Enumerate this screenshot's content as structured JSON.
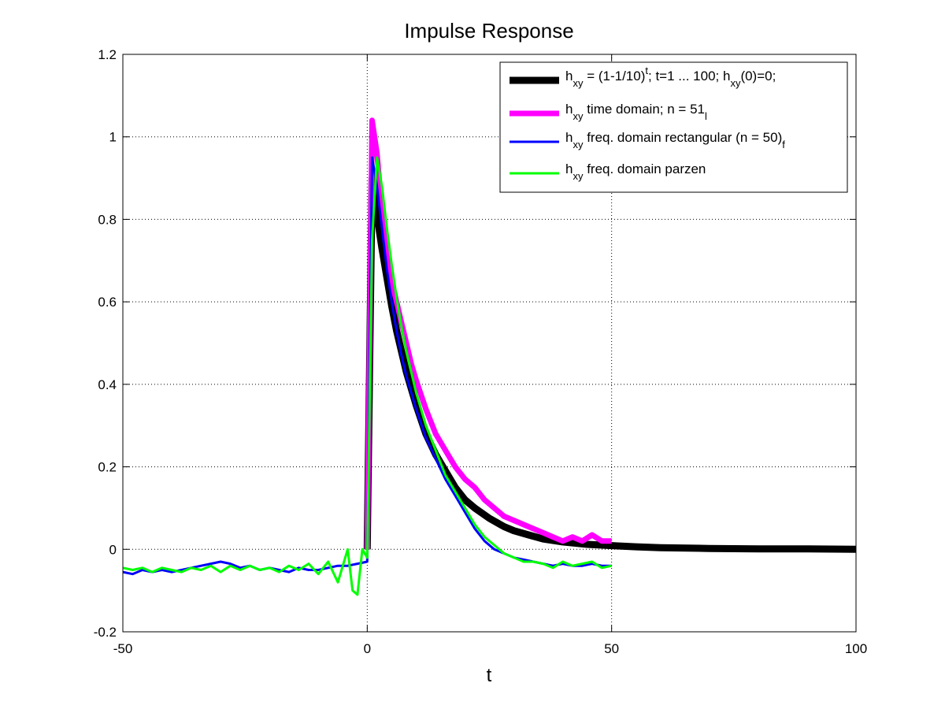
{
  "chart_data": {
    "type": "line",
    "title": "Impulse Response",
    "xlabel": "t",
    "ylabel": "",
    "xlim": [
      -50,
      100
    ],
    "ylim": [
      -0.2,
      1.2
    ],
    "xticks": [
      -50,
      0,
      50,
      100
    ],
    "xtick_labels": [
      "-50",
      "0",
      "50",
      "100"
    ],
    "yticks": [
      -0.2,
      0,
      0.2,
      0.4,
      0.6,
      0.8,
      1,
      1.2
    ],
    "ytick_labels": [
      "-0.2",
      "0",
      "0.2",
      "0.4",
      "0.6",
      "0.8",
      "1",
      "1.2"
    ],
    "grid": true,
    "legend_position": "top-right",
    "colors": {
      "true_response": "#000000",
      "time_domain": "#ff00ff",
      "freq_rect": "#0000ff",
      "freq_parzen": "#00ff00"
    },
    "series": [
      {
        "id": "true_response",
        "legend": {
          "base": "h",
          "sub": "xy",
          "rest": " = (1-1/10)",
          "sup": "t",
          "rest2": "; t=1 ... 100; h",
          "sub2": "xy",
          "rest3": "(0)=0;"
        },
        "x": [
          0,
          1,
          2,
          3,
          4,
          5,
          6,
          7,
          8,
          9,
          10,
          12,
          14,
          16,
          18,
          20,
          22,
          25,
          28,
          30,
          33,
          36,
          40,
          45,
          50,
          55,
          60,
          70,
          80,
          90,
          100
        ],
        "y": [
          0,
          0.9,
          0.81,
          0.73,
          0.66,
          0.59,
          0.53,
          0.48,
          0.43,
          0.39,
          0.35,
          0.28,
          0.23,
          0.19,
          0.15,
          0.12,
          0.1,
          0.075,
          0.055,
          0.045,
          0.035,
          0.025,
          0.018,
          0.012,
          0.009,
          0.006,
          0.004,
          0.002,
          0.001,
          0.001,
          0.0
        ]
      },
      {
        "id": "time_domain",
        "legend": {
          "base": "h",
          "sub": "xy",
          "rest": " time domain; n",
          "sub2": "l",
          "rest2": " = 51"
        },
        "x": [
          0,
          1,
          2,
          3,
          4,
          5,
          6,
          7,
          8,
          9,
          10,
          12,
          14,
          16,
          18,
          20,
          22,
          24,
          26,
          28,
          30,
          32,
          34,
          36,
          38,
          40,
          42,
          44,
          46,
          48,
          50
        ],
        "y": [
          0,
          1.04,
          0.96,
          0.82,
          0.72,
          0.65,
          0.6,
          0.55,
          0.5,
          0.45,
          0.41,
          0.34,
          0.28,
          0.24,
          0.2,
          0.17,
          0.15,
          0.12,
          0.1,
          0.08,
          0.07,
          0.06,
          0.05,
          0.04,
          0.03,
          0.02,
          0.03,
          0.02,
          0.035,
          0.02,
          0.02
        ]
      },
      {
        "id": "freq_rect",
        "legend": {
          "base": "h",
          "sub": "xy",
          "rest": " freq. domain rectangular (n",
          "sub2": "f",
          "rest2": " = 50)"
        },
        "x": [
          -50,
          -48,
          -46,
          -44,
          -42,
          -40,
          -38,
          -36,
          -34,
          -32,
          -30,
          -28,
          -26,
          -24,
          -22,
          -20,
          -18,
          -16,
          -14,
          -12,
          -10,
          -8,
          -6,
          -4,
          -2,
          0,
          1,
          2,
          3,
          4,
          5,
          6,
          7,
          8,
          9,
          10,
          12,
          14,
          16,
          18,
          20,
          22,
          24,
          26,
          28,
          30,
          32,
          34,
          36,
          38,
          40,
          42,
          44,
          46,
          48,
          50
        ],
        "y": [
          -0.055,
          -0.06,
          -0.05,
          -0.055,
          -0.05,
          -0.055,
          -0.05,
          -0.045,
          -0.04,
          -0.035,
          -0.03,
          -0.035,
          -0.045,
          -0.04,
          -0.05,
          -0.045,
          -0.05,
          -0.055,
          -0.045,
          -0.05,
          -0.05,
          -0.045,
          -0.04,
          -0.04,
          -0.035,
          -0.03,
          0.95,
          0.88,
          0.78,
          0.68,
          0.6,
          0.53,
          0.47,
          0.42,
          0.38,
          0.34,
          0.27,
          0.22,
          0.17,
          0.13,
          0.09,
          0.05,
          0.02,
          0.0,
          -0.01,
          -0.02,
          -0.025,
          -0.03,
          -0.035,
          -0.04,
          -0.035,
          -0.04,
          -0.04,
          -0.035,
          -0.04,
          -0.04
        ]
      },
      {
        "id": "freq_parzen",
        "legend": {
          "base": "h",
          "sub": "xy",
          "rest": " freq. domain parzen"
        },
        "x": [
          -50,
          -48,
          -46,
          -44,
          -42,
          -40,
          -38,
          -36,
          -34,
          -32,
          -30,
          -28,
          -26,
          -24,
          -22,
          -20,
          -18,
          -16,
          -14,
          -12,
          -10,
          -8,
          -6,
          -4,
          -3,
          -2,
          -1,
          0,
          1,
          2,
          3,
          4,
          5,
          6,
          7,
          8,
          9,
          10,
          12,
          14,
          16,
          18,
          20,
          22,
          24,
          26,
          28,
          30,
          32,
          34,
          36,
          38,
          40,
          42,
          44,
          46,
          48,
          50
        ],
        "y": [
          -0.045,
          -0.05,
          -0.045,
          -0.055,
          -0.045,
          -0.05,
          -0.055,
          -0.045,
          -0.05,
          -0.04,
          -0.055,
          -0.04,
          -0.05,
          -0.04,
          -0.05,
          -0.045,
          -0.055,
          -0.04,
          -0.05,
          -0.035,
          -0.06,
          -0.03,
          -0.08,
          0.0,
          -0.1,
          -0.11,
          0.0,
          -0.02,
          0.75,
          0.95,
          0.88,
          0.78,
          0.69,
          0.61,
          0.54,
          0.48,
          0.43,
          0.38,
          0.3,
          0.24,
          0.18,
          0.14,
          0.1,
          0.06,
          0.03,
          0.01,
          -0.01,
          -0.02,
          -0.03,
          -0.03,
          -0.035,
          -0.045,
          -0.03,
          -0.04,
          -0.035,
          -0.03,
          -0.045,
          -0.04
        ]
      }
    ]
  }
}
